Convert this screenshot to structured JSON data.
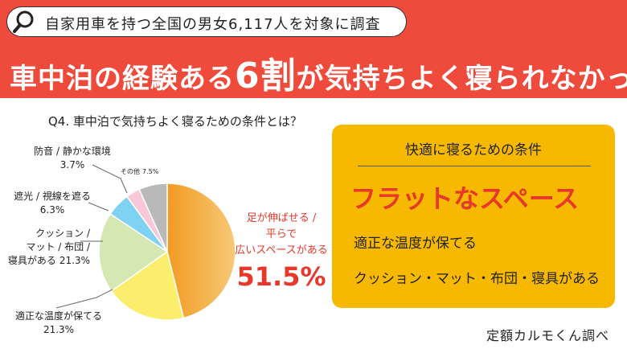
{
  "header": {
    "survey": "自家用車を持つ全国の男女6,117人を対象に調査",
    "title_parts": [
      "車中泊の経験ある",
      "6割",
      "が気持ちよく寝られなかった"
    ]
  },
  "chart_data": {
    "type": "pie",
    "title": "Q4. 車中泊で気持ちよく寝るための条件とは？",
    "categories": [
      "足が伸ばせる /\n平らで\n広いスペースがある",
      "適正な温度が保てる",
      "クッション /\nマット / 布団 /\n寝具がある",
      "遮光 / 視線を遮る",
      "防音 / 静かな環境",
      "その他"
    ],
    "values": [
      51.5,
      21.3,
      21.3,
      6.3,
      3.7,
      7.5
    ],
    "value_labels": [
      "51.5%",
      "21.3%",
      "21.3%",
      "6.3%",
      "3.7%",
      "7.5%"
    ],
    "colors": [
      "#f3a02e",
      "#faee6c",
      "#d5e8b3",
      "#7fd2f2",
      "#f8c7d9",
      "#b9b9b9"
    ]
  },
  "conditions": {
    "title": "快適に寝るための条件",
    "items": [
      "フラットなスペース",
      "適正な温度が保てる",
      "クッション・マット・布団・寝具がある"
    ]
  },
  "source": "定額カルモくん調べ"
}
